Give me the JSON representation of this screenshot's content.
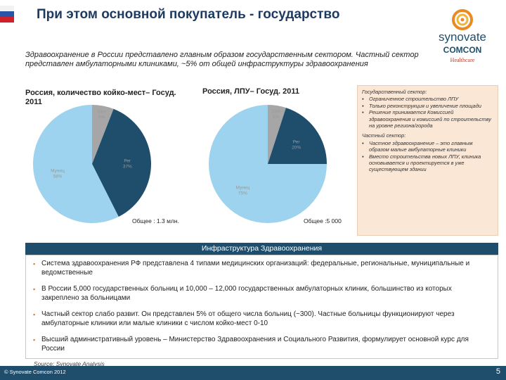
{
  "header": {
    "title": "При этом основной покупатель - государство"
  },
  "logo": {
    "brand": "synovate",
    "partner": "COMCON",
    "division": "Healthcare"
  },
  "subtitle": "Здравоохранение в России представлено главным образом государственным сектором. Частный сектор представлен амбулаторными клиниками, ~5% от общей инфраструктуры здравоохранения",
  "chart_data": [
    {
      "type": "pie",
      "title": "Россия, количество койко-мест– Госуд. 2011",
      "total_label": "Общее : 1.3 млн.",
      "slices": [
        {
          "label": "Сел",
          "value": 6
        },
        {
          "label": "Рег",
          "value": 37
        },
        {
          "label": "Муниц",
          "value": 58
        }
      ]
    },
    {
      "type": "pie",
      "title": "Россия, ЛПУ– Госуд. 2011",
      "total_label": "Общее :5 000",
      "slices": [
        {
          "label": "Сел",
          "value": 5
        },
        {
          "label": "Рег",
          "value": 20
        },
        {
          "label": "Муниц",
          "value": 75
        }
      ]
    }
  ],
  "sidebox": {
    "gov_header": "Государственный сектор:",
    "gov_items": [
      "Ограниченное строительство ЛПУ",
      "Только реконструкция и увеличение площади",
      "Решение принимается Комиссией здравоохранения и комиссией по строительству на уровне региона/города"
    ],
    "private_header": "Частный сектор:",
    "private_items": [
      "Частное здравоохранение – это главным образом малые амбулаторные клиники",
      "Вместо строительства новых ЛПУ, клиника основывается и проектируется в уже существующем здании"
    ]
  },
  "infra": {
    "header": "Инфраструктура Здравоохранения",
    "bullets": [
      "Система здравоохранения РФ представлена 4 типами медицинских организаций: федеральные, региональные, муниципальные и ведомственные",
      "В России 5,000 государственных больниц и 10,000 – 12,000 государственных амбулаторных клиник, большинство из которых закреплено за больницами",
      "Частный сектор слабо развит. Он представлен 5% от общего числа больниц (~300). Частные больницы функционируют через амбулаторные клиники или малые клиники с числом койко-мест 0-10",
      "Высший административный уровень – Министерство Здравоохранения и Социального Развития, формулирует основной курс для России"
    ]
  },
  "source": "Source: Synovate Analysis",
  "footer": {
    "copyright": "© Synovate Comcon 2012",
    "page": "5"
  },
  "colors": {
    "navy": "#1f4e6d",
    "pie_dark": "#1f4e6d",
    "pie_light": "#9dd3ee",
    "pie_grey": "#a6a6a6",
    "accent_orange": "#e98a23"
  }
}
